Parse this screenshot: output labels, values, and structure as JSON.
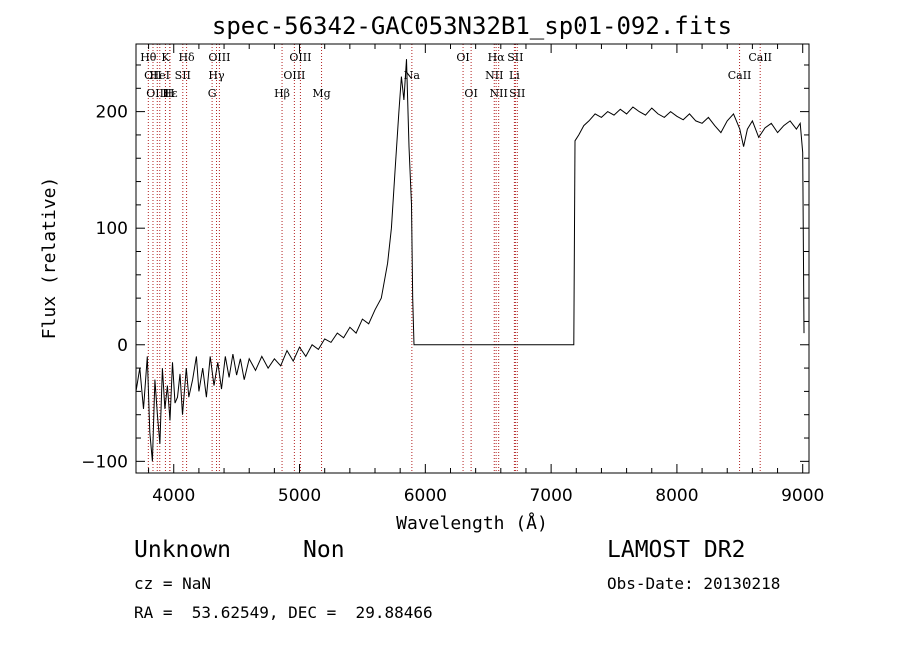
{
  "chart_data": {
    "type": "line",
    "title": "spec-56342-GAC053N32B1_sp01-092.fits",
    "xlabel": "Wavelength (Å)",
    "ylabel": "Flux (relative)",
    "xlim": [
      3700,
      9050
    ],
    "ylim": [
      -110,
      258
    ],
    "xticks": [
      4000,
      5000,
      6000,
      7000,
      8000,
      9000
    ],
    "yticks": [
      -100,
      0,
      100,
      200
    ],
    "grid": false,
    "series": [
      {
        "points": [
          [
            3700,
            -40
          ],
          [
            3730,
            -20
          ],
          [
            3760,
            -55
          ],
          [
            3790,
            -10
          ],
          [
            3810,
            -75
          ],
          [
            3830,
            -100
          ],
          [
            3850,
            -30
          ],
          [
            3870,
            -60
          ],
          [
            3890,
            -85
          ],
          [
            3910,
            -20
          ],
          [
            3930,
            -55
          ],
          [
            3950,
            -35
          ],
          [
            3970,
            -65
          ],
          [
            3990,
            -15
          ],
          [
            4010,
            -50
          ],
          [
            4030,
            -45
          ],
          [
            4050,
            -25
          ],
          [
            4070,
            -60
          ],
          [
            4100,
            -20
          ],
          [
            4120,
            -45
          ],
          [
            4150,
            -30
          ],
          [
            4180,
            -10
          ],
          [
            4200,
            -40
          ],
          [
            4230,
            -20
          ],
          [
            4260,
            -45
          ],
          [
            4290,
            -10
          ],
          [
            4320,
            -35
          ],
          [
            4350,
            -15
          ],
          [
            4380,
            -38
          ],
          [
            4410,
            -10
          ],
          [
            4440,
            -28
          ],
          [
            4470,
            -8
          ],
          [
            4500,
            -26
          ],
          [
            4530,
            -12
          ],
          [
            4560,
            -30
          ],
          [
            4600,
            -12
          ],
          [
            4650,
            -22
          ],
          [
            4700,
            -10
          ],
          [
            4750,
            -20
          ],
          [
            4800,
            -12
          ],
          [
            4850,
            -18
          ],
          [
            4900,
            -5
          ],
          [
            4950,
            -14
          ],
          [
            5000,
            -2
          ],
          [
            5050,
            -10
          ],
          [
            5100,
            0
          ],
          [
            5150,
            -4
          ],
          [
            5200,
            5
          ],
          [
            5250,
            2
          ],
          [
            5300,
            10
          ],
          [
            5350,
            6
          ],
          [
            5400,
            15
          ],
          [
            5450,
            10
          ],
          [
            5500,
            22
          ],
          [
            5550,
            18
          ],
          [
            5600,
            30
          ],
          [
            5650,
            40
          ],
          [
            5700,
            70
          ],
          [
            5730,
            100
          ],
          [
            5760,
            150
          ],
          [
            5790,
            200
          ],
          [
            5810,
            230
          ],
          [
            5830,
            210
          ],
          [
            5850,
            245
          ],
          [
            5870,
            170
          ],
          [
            5890,
            120
          ],
          [
            5900,
            40
          ],
          [
            5910,
            0
          ],
          [
            7180,
            0
          ],
          [
            7190,
            175
          ],
          [
            7220,
            180
          ],
          [
            7260,
            188
          ],
          [
            7300,
            192
          ],
          [
            7350,
            198
          ],
          [
            7400,
            195
          ],
          [
            7450,
            200
          ],
          [
            7500,
            197
          ],
          [
            7550,
            202
          ],
          [
            7600,
            198
          ],
          [
            7650,
            204
          ],
          [
            7700,
            200
          ],
          [
            7750,
            197
          ],
          [
            7800,
            203
          ],
          [
            7850,
            198
          ],
          [
            7900,
            195
          ],
          [
            7950,
            200
          ],
          [
            8000,
            196
          ],
          [
            8050,
            193
          ],
          [
            8100,
            198
          ],
          [
            8150,
            192
          ],
          [
            8200,
            190
          ],
          [
            8250,
            195
          ],
          [
            8300,
            188
          ],
          [
            8350,
            182
          ],
          [
            8400,
            192
          ],
          [
            8450,
            198
          ],
          [
            8500,
            185
          ],
          [
            8530,
            170
          ],
          [
            8560,
            185
          ],
          [
            8600,
            192
          ],
          [
            8650,
            178
          ],
          [
            8700,
            186
          ],
          [
            8750,
            190
          ],
          [
            8800,
            182
          ],
          [
            8850,
            188
          ],
          [
            8900,
            192
          ],
          [
            8950,
            185
          ],
          [
            8980,
            190
          ],
          [
            9000,
            165
          ],
          [
            9010,
            10
          ]
        ]
      }
    ],
    "line_markers": [
      {
        "wavelength": 3798,
        "label": "Hθ",
        "row": 1
      },
      {
        "wavelength": 3835,
        "label": "OII",
        "row": 2
      },
      {
        "wavelength": 3869,
        "label": "OIII",
        "row": 3
      },
      {
        "wavelength": 3889,
        "label": "HeI",
        "row": 2
      },
      {
        "wavelength": 3934,
        "label": "K",
        "row": 1
      },
      {
        "wavelength": 3970,
        "label": "Hε",
        "row": 3
      },
      {
        "wavelength": 3968,
        "label": "H",
        "row": 3
      },
      {
        "wavelength": 4072,
        "label": "SII",
        "row": 2
      },
      {
        "wavelength": 4102,
        "label": "Hδ",
        "row": 1
      },
      {
        "wavelength": 4305,
        "label": "G",
        "row": 3
      },
      {
        "wavelength": 4340,
        "label": "Hγ",
        "row": 2
      },
      {
        "wavelength": 4363,
        "label": "OIII",
        "row": 1
      },
      {
        "wavelength": 4861,
        "label": "Hβ",
        "row": 3
      },
      {
        "wavelength": 4959,
        "label": "OIII",
        "row": 2
      },
      {
        "wavelength": 5007,
        "label": "OIII",
        "row": 1
      },
      {
        "wavelength": 5175,
        "label": "Mg",
        "row": 3
      },
      {
        "wavelength": 5893,
        "label": "Na",
        "row": 2
      },
      {
        "wavelength": 6300,
        "label": "OI",
        "row": 1
      },
      {
        "wavelength": 6364,
        "label": "OI",
        "row": 3
      },
      {
        "wavelength": 6548,
        "label": "NII",
        "row": 2
      },
      {
        "wavelength": 6563,
        "label": "Hα",
        "row": 1
      },
      {
        "wavelength": 6583,
        "label": "NII",
        "row": 3
      },
      {
        "wavelength": 6708,
        "label": "Li",
        "row": 2
      },
      {
        "wavelength": 6716,
        "label": "SII",
        "row": 1
      },
      {
        "wavelength": 6731,
        "label": "SII",
        "row": 3
      },
      {
        "wavelength": 8498,
        "label": "CaII",
        "row": 2
      },
      {
        "wavelength": 8662,
        "label": "CaII",
        "row": 1
      }
    ]
  },
  "info": {
    "class_label": "Unknown",
    "subclass_label": "Non",
    "cz": "cz = NaN",
    "coords": "RA =  53.62549, DEC =  29.88466",
    "survey": "LAMOST DR2",
    "obs_date": "Obs-Date: 20130218"
  },
  "colors": {
    "spectrum": "#000000",
    "marker_lines": "#b22222"
  }
}
